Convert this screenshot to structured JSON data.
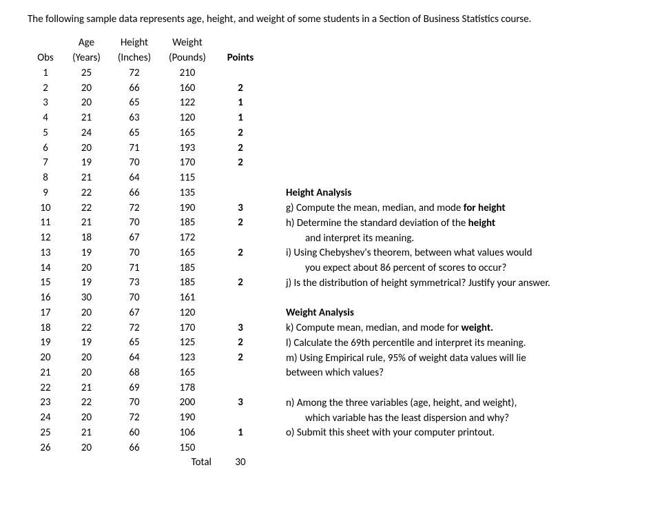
{
  "intro": "The following sample data represents age, height, and weight of some students in a Section of Business Statistics course.",
  "headers": {
    "obs": "Obs",
    "age_top": "Age",
    "age_bot": "(Years)",
    "height_top": "Height",
    "height_bot": "(Inches)",
    "weight_top": "Weight",
    "weight_bot": "(Pounds)",
    "points": "Points"
  },
  "rows": [
    {
      "obs": "1",
      "age": "25",
      "h": "72",
      "w": "210",
      "pts": ""
    },
    {
      "obs": "2",
      "age": "20",
      "h": "66",
      "w": "160",
      "pts": "2"
    },
    {
      "obs": "3",
      "age": "20",
      "h": "65",
      "w": "122",
      "pts": "1"
    },
    {
      "obs": "4",
      "age": "21",
      "h": "63",
      "w": "120",
      "pts": "1"
    },
    {
      "obs": "5",
      "age": "24",
      "h": "65",
      "w": "165",
      "pts": "2"
    },
    {
      "obs": "6",
      "age": "20",
      "h": "71",
      "w": "193",
      "pts": "2"
    },
    {
      "obs": "7",
      "age": "19",
      "h": "70",
      "w": "170",
      "pts": "2"
    },
    {
      "obs": "8",
      "age": "21",
      "h": "64",
      "w": "115",
      "pts": ""
    },
    {
      "obs": "9",
      "age": "22",
      "h": "66",
      "w": "135",
      "pts": ""
    },
    {
      "obs": "10",
      "age": "22",
      "h": "72",
      "w": "190",
      "pts": "3"
    },
    {
      "obs": "11",
      "age": "21",
      "h": "70",
      "w": "185",
      "pts": "2"
    },
    {
      "obs": "12",
      "age": "18",
      "h": "67",
      "w": "172",
      "pts": ""
    },
    {
      "obs": "13",
      "age": "19",
      "h": "70",
      "w": "165",
      "pts": "2"
    },
    {
      "obs": "14",
      "age": "20",
      "h": "71",
      "w": "185",
      "pts": ""
    },
    {
      "obs": "15",
      "age": "19",
      "h": "73",
      "w": "185",
      "pts": "2"
    },
    {
      "obs": "16",
      "age": "30",
      "h": "70",
      "w": "161",
      "pts": ""
    },
    {
      "obs": "17",
      "age": "20",
      "h": "67",
      "w": "120",
      "pts": ""
    },
    {
      "obs": "18",
      "age": "22",
      "h": "72",
      "w": "170",
      "pts": "3"
    },
    {
      "obs": "19",
      "age": "19",
      "h": "65",
      "w": "125",
      "pts": "2"
    },
    {
      "obs": "20",
      "age": "20",
      "h": "64",
      "w": "123",
      "pts": "2"
    },
    {
      "obs": "21",
      "age": "20",
      "h": "68",
      "w": "165",
      "pts": ""
    },
    {
      "obs": "22",
      "age": "21",
      "h": "69",
      "w": "178",
      "pts": ""
    },
    {
      "obs": "23",
      "age": "22",
      "h": "70",
      "w": "200",
      "pts": "3"
    },
    {
      "obs": "24",
      "age": "20",
      "h": "72",
      "w": "190",
      "pts": ""
    },
    {
      "obs": "25",
      "age": "21",
      "h": "60",
      "w": "106",
      "pts": "1"
    },
    {
      "obs": "26",
      "age": "20",
      "h": "66",
      "w": "150",
      "pts": ""
    }
  ],
  "total_label": "Total",
  "total_value": "30",
  "questions": [
    {
      "type": "head",
      "text": "Height Analysis"
    },
    {
      "type": "line",
      "pre": "g) Compute the mean, median, and mode ",
      "bold": "for height",
      "post": ""
    },
    {
      "type": "line",
      "pre": "h) Determine the standard deviation of the ",
      "bold": "height",
      "post": ""
    },
    {
      "type": "cont",
      "text": "and interpret its meaning."
    },
    {
      "type": "line",
      "pre": "i) Using Chebyshev's theorem, between what values would",
      "bold": "",
      "post": ""
    },
    {
      "type": "cont",
      "text": "you expect about 86 percent of scores to occur?"
    },
    {
      "type": "line",
      "pre": "j) Is the distribution of height symmetrical? Justify your answer.",
      "bold": "",
      "post": ""
    },
    {
      "type": "blank",
      "text": ""
    },
    {
      "type": "head",
      "text": "Weight Analysis"
    },
    {
      "type": "line",
      "pre": "k) Compute mean, median, and mode for ",
      "bold": "weight.",
      "post": ""
    },
    {
      "type": "line",
      "pre": "l) Calculate the 69th percentile and interpret its meaning.",
      "bold": "",
      "post": ""
    },
    {
      "type": "line",
      "pre": "m) Using Empirical rule, 95% of weight data values will lie",
      "bold": "",
      "post": ""
    },
    {
      "type": "line",
      "pre": "between which values?",
      "bold": "",
      "post": ""
    },
    {
      "type": "blank",
      "text": ""
    },
    {
      "type": "line",
      "pre": "n) Among the three variables (age, height, and weight),",
      "bold": "",
      "post": ""
    },
    {
      "type": "cont",
      "text": "which variable has the least dispersion and why?"
    },
    {
      "type": "line",
      "pre": "o) Submit this sheet with your computer printout.",
      "bold": "",
      "post": ""
    }
  ]
}
